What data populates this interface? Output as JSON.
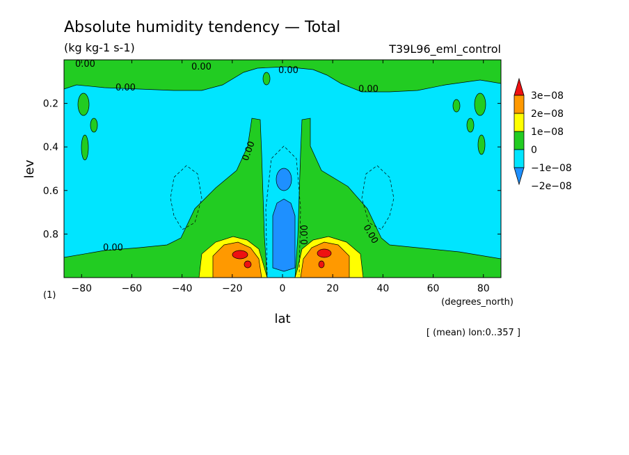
{
  "chart_data": {
    "type": "heatmap",
    "title": "Absolute humidity tendency — Total",
    "units": "(kg kg-1 s-1)",
    "experiment": "T39L96_eml_control",
    "xlabel": "lat",
    "x_units": "(degrees_north)",
    "ylabel": "lev",
    "y_units": "(1)",
    "note": "[ (mean) lon:0..357 ]",
    "xlim": [
      -87,
      87
    ],
    "ylim": [
      1.0,
      0.0
    ],
    "y_reversed": true,
    "grid": false,
    "x_ticks": [
      -80,
      -60,
      -40,
      -20,
      0,
      20,
      40,
      60,
      80
    ],
    "x_tick_labels": [
      "−80",
      "−60",
      "−40",
      "−20",
      "0",
      "20",
      "40",
      "60",
      "80"
    ],
    "y_ticks": [
      0.2,
      0.4,
      0.6,
      0.8
    ],
    "y_tick_labels": [
      "0.2",
      "0.4",
      "0.6",
      "0.8"
    ],
    "contour_labels": [
      "0.00",
      "0.00",
      "0.00",
      "0.00",
      "0.00",
      "0.00",
      "0.00",
      "0.00",
      "0.00"
    ],
    "colorbar": {
      "labels": [
        "3e−08",
        "2e−08",
        "1e−08",
        "0",
        "−1e−08",
        "−2e−08"
      ],
      "bounds": [
        -2e-08,
        -1e-08,
        0,
        1e-08,
        2e-08,
        3e-08
      ],
      "colors": [
        "#1e90ff",
        "#00e5ff",
        "#22cc22",
        "#ffff00",
        "#ff9900",
        "#ee1111"
      ],
      "over_color": "#ee1111",
      "under_color": "#1e90ff"
    },
    "fields": [
      {
        "name": "background",
        "class": "-1e-08..0",
        "color": "#00e5ff",
        "lat": [
          -87,
          87
        ],
        "lev": [
          0.0,
          1.0
        ]
      },
      {
        "name": "upper moistening layer",
        "class": "0..1e-08",
        "color": "#22cc22",
        "lat": [
          -87,
          87
        ],
        "lev": [
          0.0,
          0.12
        ]
      },
      {
        "name": "subtropical moistening plumes",
        "class": "0..1e-08",
        "color": "#22cc22",
        "lat": [
          -40,
          40
        ],
        "lev": [
          0.27,
          1.0
        ]
      },
      {
        "name": "near-surface moistening",
        "class": "1e-08..3e-08",
        "color": "#ff9900",
        "lat": [
          -30,
          30
        ],
        "lev": [
          0.8,
          1.0
        ]
      },
      {
        "name": "equatorial drying",
        "class": "-2e-08..-1e-08",
        "color": "#1e90ff",
        "lat": [
          -6,
          6
        ],
        "lev": [
          0.5,
          1.0
        ]
      },
      {
        "name": "low-level maxima",
        "class": ">3e-08",
        "color": "#ee1111",
        "lat": [
          -20,
          20
        ],
        "lev": [
          0.84,
          0.95
        ]
      }
    ]
  }
}
